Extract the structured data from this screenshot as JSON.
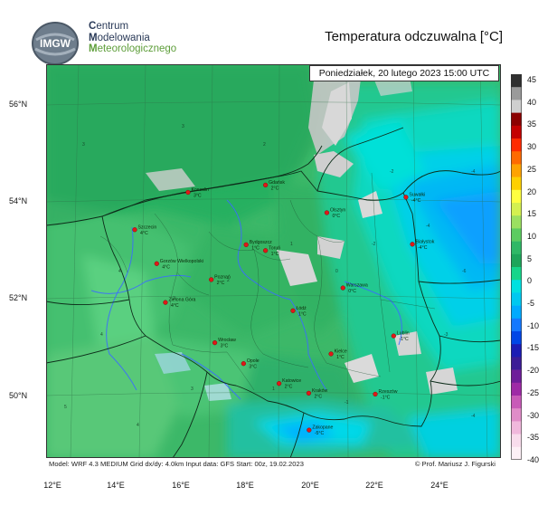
{
  "header": {
    "logo_text": "IMGW",
    "org_line1_first": "C",
    "org_line1_rest": "entrum",
    "org_line2_first": "M",
    "org_line2_rest": "odelowania",
    "org_line3_first": "M",
    "org_line3_rest": "eteorologicznego",
    "title": "Temperatura odczuwalna [°C]"
  },
  "map": {
    "datetime": "Poniedziałek, 20 lutego 2023 15:00 UTC",
    "lat_labels": [
      "56°N",
      "54°N",
      "52°N",
      "50°N"
    ],
    "lon_labels": [
      "12°E",
      "14°E",
      "16°E",
      "18°E",
      "20°E",
      "22°E",
      "24°E"
    ],
    "cities": [
      {
        "name": "Koszalin",
        "temp": "3°C",
        "lon": 16.2,
        "lat": 54.2
      },
      {
        "name": "Gdańsk",
        "temp": "2°C",
        "lon": 18.6,
        "lat": 54.35
      },
      {
        "name": "Olsztyn",
        "temp": "0°C",
        "lon": 20.5,
        "lat": 53.78
      },
      {
        "name": "Suwałki",
        "temp": "-4°C",
        "lon": 22.95,
        "lat": 54.1
      },
      {
        "name": "Szczecin",
        "temp": "4°C",
        "lon": 14.55,
        "lat": 53.43
      },
      {
        "name": "Bydgoszcz",
        "temp": "1°C",
        "lon": 18.0,
        "lat": 53.12
      },
      {
        "name": "Toruń",
        "temp": "1°C",
        "lon": 18.6,
        "lat": 53.0
      },
      {
        "name": "Białystok",
        "temp": "-4°C",
        "lon": 23.15,
        "lat": 53.13
      },
      {
        "name": "Gorzów Wielkopolski",
        "temp": "4°C",
        "lon": 15.23,
        "lat": 52.73
      },
      {
        "name": "Poznań",
        "temp": "2°C",
        "lon": 16.92,
        "lat": 52.4
      },
      {
        "name": "Warszawa",
        "temp": "0°C",
        "lon": 21.0,
        "lat": 52.23
      },
      {
        "name": "Zielona Góra",
        "temp": "4°C",
        "lon": 15.5,
        "lat": 51.93
      },
      {
        "name": "Łódź",
        "temp": "1°C",
        "lon": 19.45,
        "lat": 51.76
      },
      {
        "name": "Lublin",
        "temp": "-1°C",
        "lon": 22.57,
        "lat": 51.24
      },
      {
        "name": "Wrocław",
        "temp": "3°C",
        "lon": 17.03,
        "lat": 51.1
      },
      {
        "name": "Kielce",
        "temp": "1°C",
        "lon": 20.63,
        "lat": 50.87
      },
      {
        "name": "Opole",
        "temp": "3°C",
        "lon": 17.92,
        "lat": 50.67
      },
      {
        "name": "Katowice",
        "temp": "2°C",
        "lon": 19.02,
        "lat": 50.26
      },
      {
        "name": "Kraków",
        "temp": "2°C",
        "lon": 19.94,
        "lat": 50.06
      },
      {
        "name": "Rzeszów",
        "temp": "-1°C",
        "lon": 22.0,
        "lat": 50.04
      },
      {
        "name": "Zakopane",
        "temp": "-5°C",
        "lon": 19.95,
        "lat": 49.3
      }
    ],
    "footer_left": "Model: WRF 4.3 MEDIUM   Grid dx/dy: 4.0km   Input data: GFS   Start: 00z, 19.02.2023",
    "footer_right": "© Prof. Mariusz J. Figurski"
  },
  "colorbar": {
    "ticks": [
      "45",
      "40",
      "35",
      "30",
      "25",
      "20",
      "15",
      "10",
      "5",
      "0",
      "-5",
      "-10",
      "-15",
      "-20",
      "-25",
      "-30",
      "-35",
      "-40"
    ],
    "colors": [
      "#303030",
      "#9a9a9a",
      "#cfcfcf",
      "#8b0000",
      "#c40000",
      "#ff2a00",
      "#ff6a00",
      "#ffa200",
      "#ffd000",
      "#ffff40",
      "#d4f050",
      "#9be060",
      "#5ccc60",
      "#2fb866",
      "#1ea55a",
      "#16d58a",
      "#00e0e0",
      "#00c8f0",
      "#00aaff",
      "#1478ff",
      "#0046e6",
      "#1c1cb4",
      "#3c1c96",
      "#6e1e9a",
      "#9e2aa6",
      "#c85ab8",
      "#e08cc8",
      "#f0b8dc",
      "#f8dcec",
      "#fdf0f6"
    ]
  }
}
